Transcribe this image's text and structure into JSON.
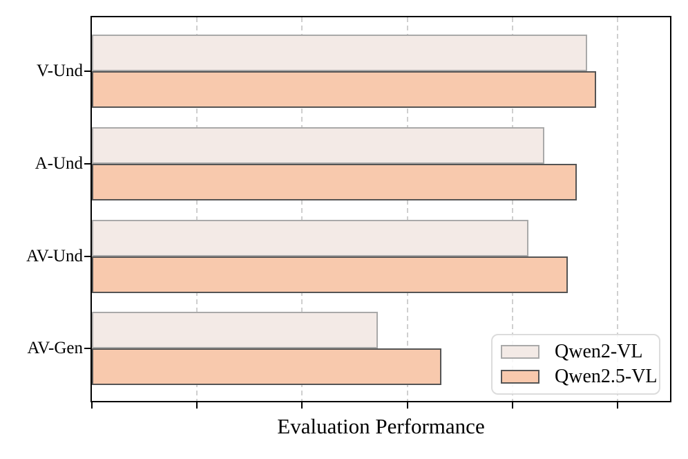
{
  "figure": {
    "background_color": "#ffffff",
    "spine_color": "#000000",
    "grid_color": "#cfcfcf"
  },
  "chart_data": {
    "type": "bar",
    "orientation": "horizontal",
    "title": "",
    "xlabel": "Evaluation Performance",
    "ylabel": "",
    "categories": [
      "V-Und",
      "A-Und",
      "AV-Und",
      "AV-Gen"
    ],
    "series": [
      {
        "name": "Qwen2-VL",
        "values": [
          94.2,
          86.1,
          83.1,
          54.4
        ],
        "fill_color": "#f3eae6",
        "edge_color": "#a9a9a9"
      },
      {
        "name": "Qwen2.5-VL",
        "values": [
          95.9,
          92.3,
          90.5,
          66.5
        ],
        "fill_color": "#f8c9ad",
        "edge_color": "#545454"
      }
    ],
    "xlim": [
      0,
      110
    ],
    "xticks": [
      0,
      20,
      40,
      60,
      80,
      100
    ],
    "xtick_labels_visible": false,
    "grid": {
      "axis": "x",
      "line_style": "dashed",
      "color": "#cfcfcf"
    },
    "legend": {
      "position": "lower-right"
    }
  }
}
